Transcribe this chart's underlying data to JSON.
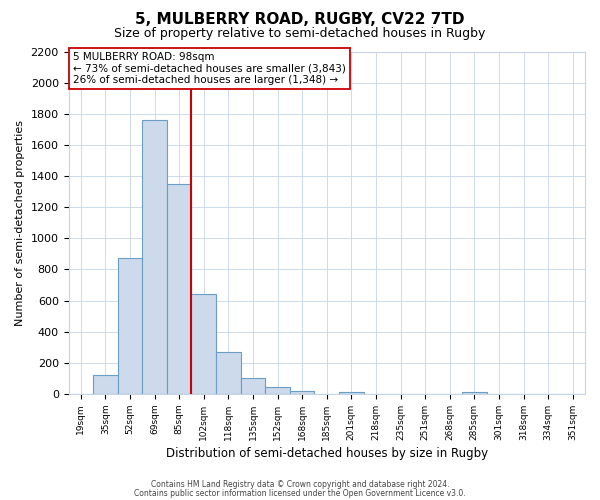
{
  "title": "5, MULBERRY ROAD, RUGBY, CV22 7TD",
  "subtitle": "Size of property relative to semi-detached houses in Rugby",
  "xlabel": "Distribution of semi-detached houses by size in Rugby",
  "ylabel": "Number of semi-detached properties",
  "bar_labels": [
    "19sqm",
    "35sqm",
    "52sqm",
    "69sqm",
    "85sqm",
    "102sqm",
    "118sqm",
    "135sqm",
    "152sqm",
    "168sqm",
    "185sqm",
    "201sqm",
    "218sqm",
    "235sqm",
    "251sqm",
    "268sqm",
    "285sqm",
    "301sqm",
    "318sqm",
    "334sqm",
    "351sqm"
  ],
  "bar_values": [
    0,
    120,
    875,
    1760,
    1350,
    645,
    270,
    100,
    45,
    20,
    0,
    15,
    0,
    0,
    0,
    0,
    15,
    0,
    0,
    0,
    0
  ],
  "bar_color": "#ccdaeb",
  "bar_edge_color": "#6a9ec5",
  "property_line_color": "#cc0000",
  "annotation_box_edge_color": "#cc0000",
  "annotation_title": "5 MULBERRY ROAD: 98sqm",
  "annotation_line1": "← 73% of semi-detached houses are smaller (3,843)",
  "annotation_line2": "26% of semi-detached houses are larger (1,348) →",
  "ylim": [
    0,
    2200
  ],
  "yticks": [
    0,
    200,
    400,
    600,
    800,
    1000,
    1200,
    1400,
    1600,
    1800,
    2000,
    2200
  ],
  "footer1": "Contains HM Land Registry data © Crown copyright and database right 2024.",
  "footer2": "Contains public sector information licensed under the Open Government Licence v3.0.",
  "background_color": "#ffffff",
  "grid_color": "#c5d5e5"
}
